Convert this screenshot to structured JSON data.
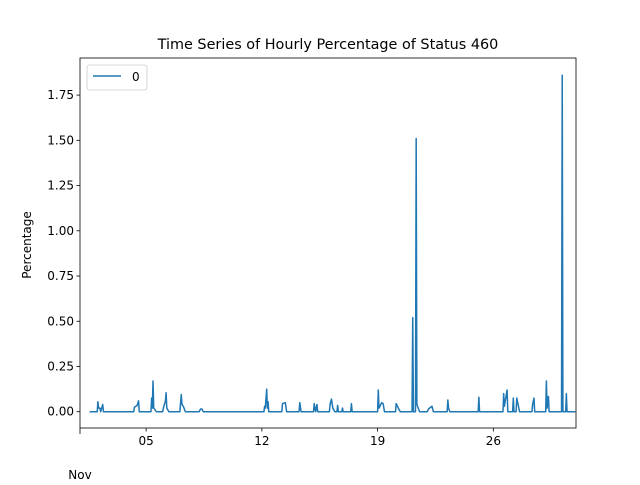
{
  "chart_data": {
    "type": "line",
    "title": "Time Series of Hourly Percentage of Status 460",
    "xlabel": "",
    "ylabel": "Percentage",
    "x_range": [
      "2024-11-01T00:00",
      "2024-12-01T00:00"
    ],
    "ylim": [
      -0.09,
      1.955
    ],
    "grid": false,
    "legend_position": "top-left",
    "x_ticks": [
      {
        "date": "2024-11-05",
        "label": "05"
      },
      {
        "date": "2024-11-12",
        "label": "12"
      },
      {
        "date": "2024-11-19",
        "label": "19"
      },
      {
        "date": "2024-11-26",
        "label": "26"
      }
    ],
    "x_month_label": "Nov",
    "y_ticks": [
      0.0,
      0.25,
      0.5,
      0.75,
      1.0,
      1.25,
      1.5,
      1.75
    ],
    "y_tick_labels": [
      "0.00",
      "0.25",
      "0.50",
      "0.75",
      "1.00",
      "1.25",
      "1.50",
      "1.75"
    ],
    "series": [
      {
        "name": "0",
        "color": "#1f77b4",
        "points": [
          [
            "2024-11-01T14:00",
            0.0
          ],
          [
            "2024-11-02T01:00",
            0.0
          ],
          [
            "2024-11-02T02:00",
            0.055
          ],
          [
            "2024-11-02T03:00",
            0.02
          ],
          [
            "2024-11-02T05:00",
            0.02
          ],
          [
            "2024-11-02T06:00",
            0.0
          ],
          [
            "2024-11-02T09:00",
            0.04
          ],
          [
            "2024-11-02T10:00",
            0.0
          ],
          [
            "2024-11-04T06:00",
            0.0
          ],
          [
            "2024-11-04T07:00",
            0.025
          ],
          [
            "2024-11-04T11:00",
            0.035
          ],
          [
            "2024-11-04T13:00",
            0.06
          ],
          [
            "2024-11-04T14:00",
            0.0
          ],
          [
            "2024-11-05T07:00",
            0.0
          ],
          [
            "2024-11-05T08:00",
            0.075
          ],
          [
            "2024-11-05T09:00",
            0.02
          ],
          [
            "2024-11-05T10:00",
            0.17
          ],
          [
            "2024-11-05T11:00",
            0.02
          ],
          [
            "2024-11-05T15:00",
            0.0
          ],
          [
            "2024-11-06T00:00",
            0.0
          ],
          [
            "2024-11-06T01:00",
            0.02
          ],
          [
            "2024-11-06T04:00",
            0.06
          ],
          [
            "2024-11-06T05:00",
            0.105
          ],
          [
            "2024-11-06T06:00",
            0.02
          ],
          [
            "2024-11-06T09:00",
            0.0
          ],
          [
            "2024-11-07T01:00",
            0.0
          ],
          [
            "2024-11-07T02:00",
            0.05
          ],
          [
            "2024-11-07T03:00",
            0.095
          ],
          [
            "2024-11-07T04:00",
            0.04
          ],
          [
            "2024-11-07T06:00",
            0.03
          ],
          [
            "2024-11-07T09:00",
            0.0
          ],
          [
            "2024-11-08T05:00",
            0.0
          ],
          [
            "2024-11-08T07:00",
            0.015
          ],
          [
            "2024-11-08T09:00",
            0.015
          ],
          [
            "2024-11-08T11:00",
            0.0
          ],
          [
            "2024-11-12T03:00",
            0.0
          ],
          [
            "2024-11-12T04:00",
            0.03
          ],
          [
            "2024-11-12T05:00",
            0.02
          ],
          [
            "2024-11-12T07:00",
            0.125
          ],
          [
            "2024-11-12T08:00",
            0.02
          ],
          [
            "2024-11-12T09:00",
            0.055
          ],
          [
            "2024-11-12T10:00",
            0.0
          ],
          [
            "2024-11-13T05:00",
            0.0
          ],
          [
            "2024-11-13T06:00",
            0.045
          ],
          [
            "2024-11-13T10:00",
            0.05
          ],
          [
            "2024-11-13T12:00",
            0.0
          ],
          [
            "2024-11-14T06:00",
            0.0
          ],
          [
            "2024-11-14T07:00",
            0.05
          ],
          [
            "2024-11-14T09:00",
            0.0
          ],
          [
            "2024-11-15T03:00",
            0.0
          ],
          [
            "2024-11-15T04:00",
            0.045
          ],
          [
            "2024-11-15T06:00",
            0.0
          ],
          [
            "2024-11-15T08:00",
            0.04
          ],
          [
            "2024-11-15T09:00",
            0.0
          ],
          [
            "2024-11-16T02:00",
            0.0
          ],
          [
            "2024-11-16T03:00",
            0.04
          ],
          [
            "2024-11-16T05:00",
            0.07
          ],
          [
            "2024-11-16T07:00",
            0.02
          ],
          [
            "2024-11-16T10:00",
            0.0
          ],
          [
            "2024-11-16T13:00",
            0.0
          ],
          [
            "2024-11-16T14:00",
            0.035
          ],
          [
            "2024-11-16T15:00",
            0.0
          ],
          [
            "2024-11-16T20:00",
            0.0
          ],
          [
            "2024-11-16T21:00",
            0.02
          ],
          [
            "2024-11-16T22:00",
            0.0
          ],
          [
            "2024-11-17T09:00",
            0.0
          ],
          [
            "2024-11-17T10:00",
            0.045
          ],
          [
            "2024-11-17T11:00",
            0.0
          ],
          [
            "2024-11-19T00:00",
            0.0
          ],
          [
            "2024-11-19T01:00",
            0.12
          ],
          [
            "2024-11-19T02:00",
            0.02
          ],
          [
            "2024-11-19T04:00",
            0.035
          ],
          [
            "2024-11-19T06:00",
            0.05
          ],
          [
            "2024-11-19T08:00",
            0.045
          ],
          [
            "2024-11-19T10:00",
            0.0
          ],
          [
            "2024-11-20T02:00",
            0.0
          ],
          [
            "2024-11-20T03:00",
            0.045
          ],
          [
            "2024-11-20T06:00",
            0.02
          ],
          [
            "2024-11-20T09:00",
            0.0
          ],
          [
            "2024-11-21T02:00",
            0.0
          ],
          [
            "2024-11-21T03:00",
            0.52
          ],
          [
            "2024-11-21T04:00",
            0.0
          ],
          [
            "2024-11-21T07:00",
            0.0
          ],
          [
            "2024-11-21T08:00",
            1.51
          ],
          [
            "2024-11-21T09:00",
            0.04
          ],
          [
            "2024-11-21T11:00",
            0.02
          ],
          [
            "2024-11-21T13:00",
            0.0
          ],
          [
            "2024-11-22T00:00",
            0.0
          ],
          [
            "2024-11-22T02:00",
            0.015
          ],
          [
            "2024-11-22T05:00",
            0.025
          ],
          [
            "2024-11-22T07:00",
            0.03
          ],
          [
            "2024-11-22T09:00",
            0.0
          ],
          [
            "2024-11-23T05:00",
            0.0
          ],
          [
            "2024-11-23T06:00",
            0.065
          ],
          [
            "2024-11-23T07:00",
            0.02
          ],
          [
            "2024-11-23T09:00",
            0.0
          ],
          [
            "2024-11-25T02:00",
            0.0
          ],
          [
            "2024-11-25T03:00",
            0.08
          ],
          [
            "2024-11-25T04:00",
            0.0
          ],
          [
            "2024-11-26T14:00",
            0.0
          ],
          [
            "2024-11-26T15:00",
            0.1
          ],
          [
            "2024-11-26T16:00",
            0.03
          ],
          [
            "2024-11-26T20:00",
            0.12
          ],
          [
            "2024-11-26T21:00",
            0.0
          ],
          [
            "2024-11-27T04:00",
            0.0
          ],
          [
            "2024-11-27T05:00",
            0.075
          ],
          [
            "2024-11-27T06:00",
            0.0
          ],
          [
            "2024-11-27T09:00",
            0.0
          ],
          [
            "2024-11-27T10:00",
            0.075
          ],
          [
            "2024-11-27T12:00",
            0.04
          ],
          [
            "2024-11-27T14:00",
            0.0
          ],
          [
            "2024-11-28T08:00",
            0.0
          ],
          [
            "2024-11-28T09:00",
            0.04
          ],
          [
            "2024-11-28T11:00",
            0.075
          ],
          [
            "2024-11-28T12:00",
            0.0
          ],
          [
            "2024-11-29T04:00",
            0.0
          ],
          [
            "2024-11-29T05:00",
            0.17
          ],
          [
            "2024-11-29T06:00",
            0.02
          ],
          [
            "2024-11-29T08:00",
            0.085
          ],
          [
            "2024-11-29T09:00",
            0.0
          ],
          [
            "2024-11-30T03:00",
            0.0
          ],
          [
            "2024-11-30T04:00",
            1.86
          ],
          [
            "2024-11-30T05:00",
            0.0
          ],
          [
            "2024-11-30T09:00",
            0.0
          ],
          [
            "2024-11-30T10:00",
            0.1
          ],
          [
            "2024-11-30T11:00",
            0.0
          ],
          [
            "2024-11-30T23:00",
            0.0
          ]
        ]
      }
    ]
  }
}
